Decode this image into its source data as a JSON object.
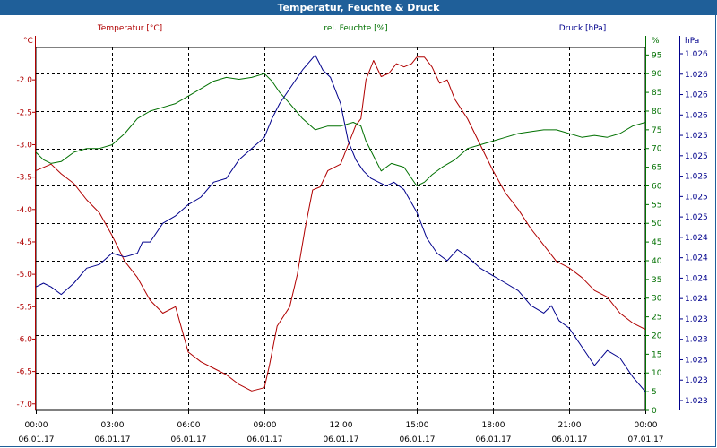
{
  "window": {
    "title": "Temperatur, Feuchte & Druck"
  },
  "chart_data": {
    "type": "line",
    "title": "Temperatur, Feuchte & Druck",
    "x_ticks": [
      {
        "time": "00:00",
        "date": "06.01.17"
      },
      {
        "time": "03:00",
        "date": "06.01.17"
      },
      {
        "time": "06:00",
        "date": "06.01.17"
      },
      {
        "time": "09:00",
        "date": "06.01.17"
      },
      {
        "time": "12:00",
        "date": "06.01.17"
      },
      {
        "time": "15:00",
        "date": "06.01.17"
      },
      {
        "time": "18:00",
        "date": "06.01.17"
      },
      {
        "time": "21:00",
        "date": "06.01.17"
      },
      {
        "time": "00:00",
        "date": "07.01.17"
      }
    ],
    "x_range_hours": [
      0,
      24
    ],
    "grid": true,
    "axes": {
      "left": {
        "label": "Temperatur [°C]",
        "unit": "°C",
        "color": "#b00000",
        "range": [
          -7.1,
          -1.5
        ],
        "ticks": [
          {
            "v": -2.0,
            "label": "-2.0"
          },
          {
            "v": -2.5,
            "label": "-2.5"
          },
          {
            "v": -3.0,
            "label": "-3.0"
          },
          {
            "v": -3.5,
            "label": "-3.5"
          },
          {
            "v": -4.0,
            "label": "-4.0"
          },
          {
            "v": -4.5,
            "label": "-4.5"
          },
          {
            "v": -5.0,
            "label": "-5.0"
          },
          {
            "v": -5.5,
            "label": "-5.5"
          },
          {
            "v": -6.0,
            "label": "-6.0"
          },
          {
            "v": -6.5,
            "label": "-6.5"
          },
          {
            "v": -7.0,
            "label": "-7.0"
          }
        ]
      },
      "right1": {
        "label": "rel. Feuchte [%]",
        "unit": "%",
        "color": "#007000",
        "range": [
          0,
          97
        ],
        "ticks": [
          {
            "v": 95,
            "label": "95"
          },
          {
            "v": 90,
            "label": "90"
          },
          {
            "v": 85,
            "label": "85"
          },
          {
            "v": 80,
            "label": "80"
          },
          {
            "v": 75,
            "label": "75"
          },
          {
            "v": 70,
            "label": "70"
          },
          {
            "v": 65,
            "label": "65"
          },
          {
            "v": 60,
            "label": "60"
          },
          {
            "v": 55,
            "label": "55"
          },
          {
            "v": 50,
            "label": "50"
          },
          {
            "v": 45,
            "label": "45"
          },
          {
            "v": 40,
            "label": "40"
          },
          {
            "v": 35,
            "label": "35"
          },
          {
            "v": 30,
            "label": "30"
          },
          {
            "v": 25,
            "label": "25"
          },
          {
            "v": 20,
            "label": "20"
          },
          {
            "v": 15,
            "label": "15"
          },
          {
            "v": 10,
            "label": "10"
          },
          {
            "v": 5,
            "label": "5"
          },
          {
            "v": 0,
            "label": "0"
          }
        ]
      },
      "right2": {
        "label": "Druck [hPa]",
        "unit": "hPa",
        "color": "#00008c",
        "ticks": [
          "1.026",
          "1.026",
          "1.026",
          "1.026",
          "1.025",
          "1.025",
          "1.025",
          "1.025",
          "1.025",
          "1.024",
          "1.024",
          "1.024",
          "1.024",
          "1.023",
          "1.023",
          "1.023",
          "1.023",
          "1.023"
        ]
      }
    },
    "series": [
      {
        "name": "Temperatur [°C]",
        "axis": "left",
        "color": "#b00000",
        "points": [
          [
            0,
            -3.4
          ],
          [
            0.3,
            -3.35
          ],
          [
            0.6,
            -3.3
          ],
          [
            1.0,
            -3.45
          ],
          [
            1.5,
            -3.6
          ],
          [
            2.0,
            -3.85
          ],
          [
            2.5,
            -4.05
          ],
          [
            3.0,
            -4.4
          ],
          [
            3.5,
            -4.8
          ],
          [
            4.0,
            -5.05
          ],
          [
            4.5,
            -5.4
          ],
          [
            5.0,
            -5.6
          ],
          [
            5.5,
            -5.5
          ],
          [
            6.0,
            -6.2
          ],
          [
            6.5,
            -6.35
          ],
          [
            7.0,
            -6.45
          ],
          [
            7.5,
            -6.55
          ],
          [
            8.0,
            -6.7
          ],
          [
            8.5,
            -6.8
          ],
          [
            9.0,
            -6.75
          ],
          [
            9.2,
            -6.4
          ],
          [
            9.5,
            -5.8
          ],
          [
            10.0,
            -5.5
          ],
          [
            10.3,
            -5.0
          ],
          [
            10.6,
            -4.3
          ],
          [
            10.9,
            -3.7
          ],
          [
            11.2,
            -3.65
          ],
          [
            11.5,
            -3.4
          ],
          [
            12.0,
            -3.3
          ],
          [
            12.3,
            -3.0
          ],
          [
            12.6,
            -2.7
          ],
          [
            12.8,
            -2.6
          ],
          [
            13.0,
            -2.0
          ],
          [
            13.3,
            -1.7
          ],
          [
            13.6,
            -1.95
          ],
          [
            13.9,
            -1.9
          ],
          [
            14.2,
            -1.75
          ],
          [
            14.5,
            -1.8
          ],
          [
            14.8,
            -1.75
          ],
          [
            15.0,
            -1.65
          ],
          [
            15.3,
            -1.65
          ],
          [
            15.6,
            -1.8
          ],
          [
            15.9,
            -2.05
          ],
          [
            16.2,
            -2.0
          ],
          [
            16.5,
            -2.3
          ],
          [
            17.0,
            -2.6
          ],
          [
            17.5,
            -3.0
          ],
          [
            18.0,
            -3.4
          ],
          [
            18.5,
            -3.75
          ],
          [
            19.0,
            -4.0
          ],
          [
            19.5,
            -4.3
          ],
          [
            20.0,
            -4.55
          ],
          [
            20.5,
            -4.8
          ],
          [
            21.0,
            -4.9
          ],
          [
            21.5,
            -5.05
          ],
          [
            22.0,
            -5.25
          ],
          [
            22.5,
            -5.35
          ],
          [
            23.0,
            -5.6
          ],
          [
            23.5,
            -5.75
          ],
          [
            24.0,
            -5.85
          ]
        ]
      },
      {
        "name": "rel. Feuchte [%]",
        "axis": "right1",
        "color": "#007000",
        "points": [
          [
            0,
            69
          ],
          [
            0.3,
            67
          ],
          [
            0.6,
            66
          ],
          [
            1.0,
            66.5
          ],
          [
            1.5,
            69
          ],
          [
            2.0,
            70
          ],
          [
            2.5,
            70
          ],
          [
            3.0,
            71
          ],
          [
            3.5,
            74
          ],
          [
            4.0,
            78
          ],
          [
            4.5,
            80
          ],
          [
            5.0,
            81
          ],
          [
            5.5,
            82
          ],
          [
            6.0,
            84
          ],
          [
            6.5,
            86
          ],
          [
            7.0,
            88
          ],
          [
            7.5,
            89
          ],
          [
            8.0,
            88.5
          ],
          [
            8.5,
            89
          ],
          [
            9.0,
            90
          ],
          [
            9.3,
            88
          ],
          [
            9.6,
            85
          ],
          [
            10.0,
            82
          ],
          [
            10.5,
            78
          ],
          [
            11.0,
            75
          ],
          [
            11.5,
            76
          ],
          [
            12.0,
            76
          ],
          [
            12.5,
            77
          ],
          [
            12.8,
            76
          ],
          [
            13.0,
            72
          ],
          [
            13.3,
            68
          ],
          [
            13.6,
            64
          ],
          [
            14.0,
            66
          ],
          [
            14.5,
            65
          ],
          [
            15.0,
            60
          ],
          [
            15.3,
            61
          ],
          [
            15.6,
            63
          ],
          [
            16.0,
            65
          ],
          [
            16.5,
            67
          ],
          [
            17.0,
            70
          ],
          [
            17.5,
            71
          ],
          [
            18.0,
            72
          ],
          [
            18.5,
            73
          ],
          [
            19.0,
            74
          ],
          [
            19.5,
            74.5
          ],
          [
            20.0,
            75
          ],
          [
            20.5,
            75
          ],
          [
            21.0,
            74
          ],
          [
            21.5,
            73
          ],
          [
            22.0,
            73.5
          ],
          [
            22.5,
            73
          ],
          [
            23.0,
            74
          ],
          [
            23.5,
            76
          ],
          [
            24.0,
            77
          ]
        ]
      },
      {
        "name": "Druck [hPa]",
        "axis": "right2",
        "color": "#00008c",
        "points": [
          [
            0,
            33
          ],
          [
            0.3,
            34
          ],
          [
            0.6,
            33
          ],
          [
            1.0,
            31
          ],
          [
            1.5,
            34
          ],
          [
            2.0,
            38
          ],
          [
            2.5,
            39
          ],
          [
            3.0,
            42
          ],
          [
            3.5,
            41
          ],
          [
            4.0,
            42
          ],
          [
            4.2,
            45
          ],
          [
            4.5,
            45
          ],
          [
            5.0,
            50
          ],
          [
            5.5,
            52
          ],
          [
            6.0,
            55
          ],
          [
            6.5,
            57
          ],
          [
            7.0,
            61
          ],
          [
            7.5,
            62
          ],
          [
            8.0,
            67
          ],
          [
            8.5,
            70
          ],
          [
            9.0,
            73
          ],
          [
            9.3,
            78
          ],
          [
            9.6,
            82
          ],
          [
            10.0,
            86
          ],
          [
            10.5,
            91
          ],
          [
            11.0,
            95
          ],
          [
            11.3,
            91
          ],
          [
            11.6,
            89
          ],
          [
            12.0,
            82
          ],
          [
            12.3,
            72
          ],
          [
            12.6,
            67
          ],
          [
            12.9,
            64
          ],
          [
            13.2,
            62
          ],
          [
            13.5,
            61
          ],
          [
            13.8,
            60
          ],
          [
            14.1,
            61
          ],
          [
            14.5,
            59
          ],
          [
            15.0,
            53
          ],
          [
            15.4,
            46
          ],
          [
            15.8,
            42
          ],
          [
            16.2,
            40
          ],
          [
            16.6,
            43
          ],
          [
            17.0,
            41
          ],
          [
            17.5,
            38
          ],
          [
            18.0,
            36
          ],
          [
            18.5,
            34
          ],
          [
            19.0,
            32
          ],
          [
            19.5,
            28
          ],
          [
            20.0,
            26
          ],
          [
            20.3,
            28
          ],
          [
            20.6,
            24
          ],
          [
            21.0,
            22
          ],
          [
            21.5,
            17
          ],
          [
            22.0,
            12
          ],
          [
            22.5,
            16
          ],
          [
            23.0,
            14
          ],
          [
            23.5,
            9
          ],
          [
            24.0,
            5
          ]
        ]
      }
    ]
  }
}
